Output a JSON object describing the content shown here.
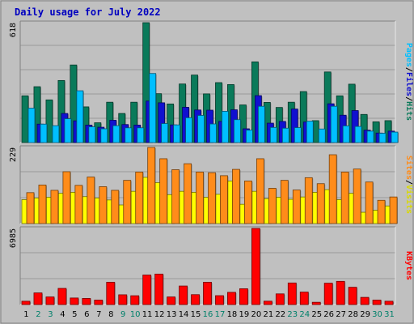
{
  "chart_data": [
    {
      "type": "bar",
      "title": "Daily usage for July 2022",
      "ymax_label": "618",
      "ylim": [
        0,
        618
      ],
      "categories": [
        "1",
        "2",
        "3",
        "4",
        "5",
        "6",
        "7",
        "8",
        "9",
        "10",
        "11",
        "12",
        "13",
        "14",
        "15",
        "16",
        "17",
        "18",
        "19",
        "20",
        "21",
        "22",
        "23",
        "24",
        "25",
        "26",
        "27",
        "28",
        "29",
        "30",
        "31"
      ],
      "series": [
        {
          "name": "Hits",
          "color": "#0a7a5a",
          "values": [
            241,
            288,
            220,
            320,
            400,
            184,
            102,
            208,
            150,
            208,
            618,
            252,
            199,
            302,
            348,
            251,
            309,
            299,
            194,
            416,
            207,
            181,
            208,
            263,
            113,
            364,
            241,
            301,
            145,
            107,
            113
          ]
        },
        {
          "name": "Files",
          "color": "#1010d0",
          "values": [
            0,
            95,
            0,
            150,
            112,
            90,
            79,
            115,
            93,
            90,
            214,
            205,
            91,
            182,
            168,
            167,
            109,
            169,
            71,
            242,
            100,
            109,
            173,
            106,
            0,
            200,
            141,
            165,
            64,
            49,
            59
          ]
        },
        {
          "name": "Pages",
          "color": "#00bfff",
          "values": [
            177,
            95,
            87,
            123,
            267,
            81,
            71,
            87,
            76,
            76,
            356,
            98,
            91,
            128,
            140,
            96,
            161,
            118,
            64,
            187,
            78,
            74,
            77,
            110,
            70,
            187,
            86,
            83,
            59,
            48,
            54
          ]
        }
      ],
      "right_labels": [
        "Pages",
        "Files",
        "Hits"
      ],
      "separator": "/"
    },
    {
      "type": "bar",
      "ymax_label": "229",
      "ylim": [
        0,
        229
      ],
      "categories": [
        "1",
        "2",
        "3",
        "4",
        "5",
        "6",
        "7",
        "8",
        "9",
        "10",
        "11",
        "12",
        "13",
        "14",
        "15",
        "16",
        "17",
        "18",
        "19",
        "20",
        "21",
        "22",
        "23",
        "24",
        "25",
        "26",
        "27",
        "28",
        "29",
        "30",
        "31"
      ],
      "series": [
        {
          "name": "Visits",
          "color": "#ffff00",
          "values": [
            72,
            77,
            79,
            91,
            94,
            81,
            77,
            71,
            56,
            97,
            139,
            123,
            87,
            97,
            94,
            79,
            88,
            128,
            58,
            97,
            75,
            79,
            73,
            80,
            94,
            102,
            72,
            91,
            34,
            40,
            53
          ]
        },
        {
          "name": "Sites",
          "color": "#ff8c1a",
          "values": [
            93,
            116,
            100,
            156,
            115,
            140,
            111,
            100,
            130,
            155,
            229,
            195,
            162,
            180,
            155,
            153,
            144,
            163,
            128,
            195,
            106,
            130,
            101,
            138,
            120,
            207,
            155,
            164,
            125,
            70,
            80
          ]
        }
      ],
      "right_labels": [
        "Sites",
        "Visits"
      ],
      "separator": "/"
    },
    {
      "type": "bar",
      "ymax_label": "6985",
      "ylim": [
        0,
        6985
      ],
      "categories": [
        "1",
        "2",
        "3",
        "4",
        "5",
        "6",
        "7",
        "8",
        "9",
        "10",
        "11",
        "12",
        "13",
        "14",
        "15",
        "16",
        "17",
        "18",
        "19",
        "20",
        "21",
        "22",
        "23",
        "24",
        "25",
        "26",
        "27",
        "28",
        "29",
        "30",
        "31"
      ],
      "series": [
        {
          "name": "KBytes",
          "color": "#ff0000",
          "values": [
            306,
            1069,
            700,
            1484,
            603,
            561,
            416,
            2048,
            896,
            810,
            2709,
            2798,
            700,
            1703,
            909,
            2048,
            817,
            1123,
            1450,
            6985,
            311,
            980,
            1982,
            1146,
            210,
            1962,
            2131,
            1587,
            661,
            416,
            306
          ]
        }
      ],
      "right_labels": [
        "KBytes"
      ]
    }
  ],
  "x_label_colors": {
    "weekday": "#000000",
    "weekend": "#00806a"
  },
  "weekend_days": [
    "2",
    "3",
    "9",
    "10",
    "16",
    "17",
    "23",
    "24",
    "30",
    "31"
  ],
  "colors": {
    "panel": "#c0c0c0",
    "frame": "#e8e8e8",
    "title": "#0000c0",
    "grid": "#9a9a9a"
  }
}
